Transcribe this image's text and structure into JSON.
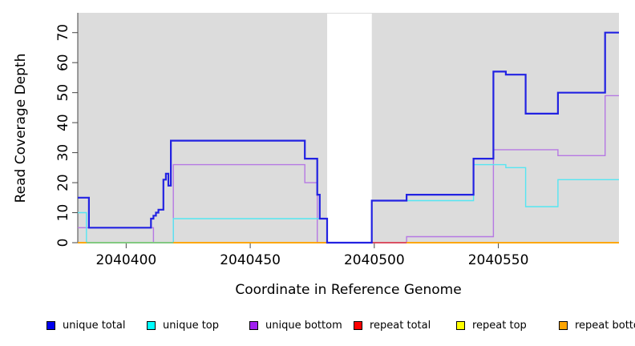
{
  "chart_data": {
    "type": "line",
    "subtype": "step-coverage-plot",
    "title": "",
    "xlabel": "Coordinate in Reference Genome",
    "ylabel": "Read Coverage Depth",
    "x_ticks": [
      2040400,
      2040450,
      2040500,
      2040550
    ],
    "y_ticks": [
      0,
      10,
      20,
      30,
      40,
      50,
      60,
      70
    ],
    "xlim": [
      2040380.5,
      2040598.6
    ],
    "ylim": [
      0,
      76.6
    ],
    "grid": "off",
    "plot_bg_color": "#DCDCDC",
    "axis_color": "#454545",
    "text_color": "#000000",
    "missing_data_band": {
      "x_start": 2040481,
      "x_end": 2040499,
      "color": "#FFFFFF"
    },
    "series": [
      {
        "name": "unique total",
        "legend_color": "#0000EE",
        "stroke": "#2222E2",
        "stroke_width": 2.2,
        "steps": [
          [
            2040380.5,
            15
          ],
          [
            2040385,
            5
          ],
          [
            2040410,
            8
          ],
          [
            2040411,
            9
          ],
          [
            2040412,
            10
          ],
          [
            2040413,
            11
          ],
          [
            2040415,
            21
          ],
          [
            2040416,
            23
          ],
          [
            2040417,
            19
          ],
          [
            2040418,
            34
          ],
          [
            2040472,
            28
          ],
          [
            2040477,
            16
          ],
          [
            2040478,
            8
          ],
          [
            2040481,
            0
          ],
          [
            2040499,
            14
          ],
          [
            2040513,
            16
          ],
          [
            2040540,
            28
          ],
          [
            2040548,
            57
          ],
          [
            2040553,
            56
          ],
          [
            2040561,
            43
          ],
          [
            2040574,
            50
          ],
          [
            2040593,
            70
          ]
        ]
      },
      {
        "name": "unique top",
        "legend_color": "#00FFFF",
        "stroke": "#55E6F2",
        "stroke_width": 1.4,
        "steps": [
          [
            2040380.5,
            10
          ],
          [
            2040384,
            0
          ],
          [
            2040419,
            8
          ],
          [
            2040481,
            0
          ],
          [
            2040499,
            14
          ],
          [
            2040540,
            26
          ],
          [
            2040553,
            25
          ],
          [
            2040561,
            12
          ],
          [
            2040574,
            21
          ]
        ]
      },
      {
        "name": "unique bottom",
        "legend_color": "#A020F0",
        "stroke": "#B678E3",
        "stroke_width": 1.4,
        "steps": [
          [
            2040380.5,
            5
          ],
          [
            2040411,
            0
          ],
          [
            2040419,
            26
          ],
          [
            2040472,
            20
          ],
          [
            2040477,
            0
          ],
          [
            2040513,
            2
          ],
          [
            2040548,
            31
          ],
          [
            2040574,
            29
          ],
          [
            2040593,
            49
          ]
        ]
      },
      {
        "name": "repeat total",
        "legend_color": "#FF0000",
        "stroke": "#E02020",
        "stroke_width": 1.4,
        "steps": [
          [
            2040380.5,
            0
          ]
        ]
      },
      {
        "name": "repeat top",
        "legend_color": "#FFFF00",
        "stroke": "#F2F200",
        "stroke_width": 1.4,
        "steps": [
          [
            2040380.5,
            0
          ]
        ]
      },
      {
        "name": "repeat bottom",
        "legend_color": "#FFA500",
        "stroke": "#FFA500",
        "stroke_width": 1.8,
        "steps": [
          [
            2040380.5,
            0
          ]
        ]
      }
    ],
    "zero_line_overlap_tints": [
      {
        "name": "unique-top-over-repeat-top-blend",
        "color": "#74CD8E",
        "x_start": 2040384,
        "x_end": 2040419,
        "value": 0
      },
      {
        "name": "repeat-total-over-unique-bottom-blend",
        "color": "#D6446C",
        "x_start": 2040499,
        "x_end": 2040513,
        "value": 0
      }
    ],
    "legend_position": "bottom"
  },
  "legend": {
    "items": [
      {
        "label": "unique total",
        "color": "#0000EE"
      },
      {
        "label": "unique top",
        "color": "#00FFFF"
      },
      {
        "label": "unique bottom",
        "color": "#A020F0"
      },
      {
        "label": "repeat total",
        "color": "#FF0000"
      },
      {
        "label": "repeat top",
        "color": "#FFFF00"
      },
      {
        "label": "repeat bottom",
        "color": "#FFA500"
      }
    ]
  }
}
